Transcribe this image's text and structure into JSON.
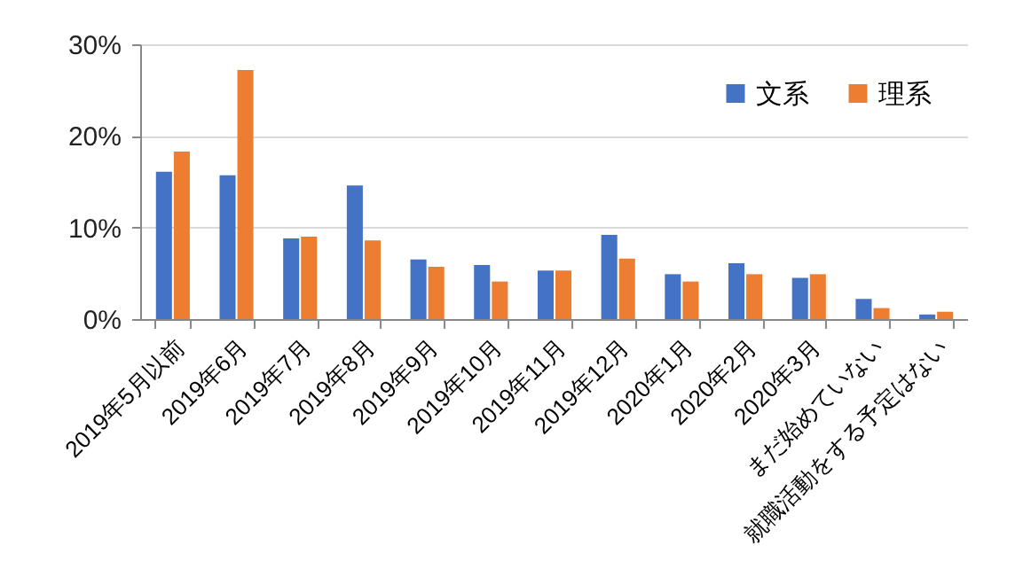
{
  "chart_data": {
    "type": "bar",
    "categories": [
      "2019年5月以前",
      "2019年6月",
      "2019年7月",
      "2019年8月",
      "2019年9月",
      "2019年10月",
      "2019年11月",
      "2019年12月",
      "2020年1月",
      "2020年2月",
      "2020年3月",
      "まだ始めていない",
      "就職活動をする予定はない"
    ],
    "series": [
      {
        "name": "文系",
        "color": "#4472c4",
        "values": [
          16.1,
          15.7,
          8.8,
          14.6,
          6.5,
          5.9,
          5.3,
          9.2,
          4.9,
          6.1,
          4.5,
          2.2,
          0.5
        ]
      },
      {
        "name": "理系",
        "color": "#ed7d31",
        "values": [
          18.3,
          27.2,
          9.0,
          8.6,
          5.7,
          4.1,
          5.3,
          6.6,
          4.1,
          4.9,
          4.9,
          1.2,
          0.8
        ]
      }
    ],
    "ylim": [
      0,
      30
    ],
    "yticks": [
      {
        "value": 0,
        "label": "0%"
      },
      {
        "value": 10,
        "label": "10%"
      },
      {
        "value": 20,
        "label": "20%"
      },
      {
        "value": 30,
        "label": "30%"
      }
    ],
    "grid": "y",
    "legend": "top right"
  }
}
